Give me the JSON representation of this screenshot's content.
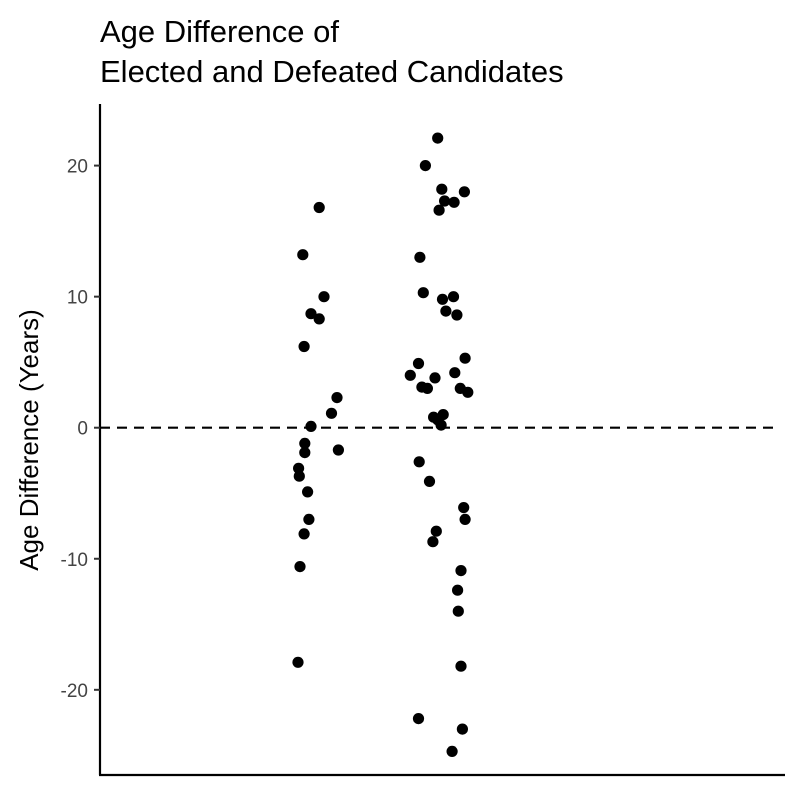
{
  "chart_data": {
    "type": "scatter",
    "title_lines": [
      "Age Difference of",
      "Elected and Defeated Candidates"
    ],
    "xlabel": "",
    "ylabel": "Age Difference (Years)",
    "ylim": [
      -26.5,
      24.7
    ],
    "yticks": [
      -20,
      -10,
      0,
      10,
      20
    ],
    "ytick_labels": [
      "-20",
      "-10",
      "0",
      "10",
      "20"
    ],
    "xlim": [
      0,
      1
    ],
    "reference_line": {
      "y": 0,
      "style": "dashed"
    },
    "grid": false,
    "legend": "none",
    "point_color": "#000000",
    "points": [
      {
        "x": 0.493,
        "y": 22.1
      },
      {
        "x": 0.475,
        "y": 20.0
      },
      {
        "x": 0.499,
        "y": 18.2
      },
      {
        "x": 0.532,
        "y": 18.0
      },
      {
        "x": 0.503,
        "y": 17.3
      },
      {
        "x": 0.517,
        "y": 17.2
      },
      {
        "x": 0.32,
        "y": 16.8
      },
      {
        "x": 0.495,
        "y": 16.6
      },
      {
        "x": 0.296,
        "y": 13.2
      },
      {
        "x": 0.467,
        "y": 13.0
      },
      {
        "x": 0.472,
        "y": 10.3
      },
      {
        "x": 0.5,
        "y": 9.8
      },
      {
        "x": 0.516,
        "y": 10.0
      },
      {
        "x": 0.327,
        "y": 10.0
      },
      {
        "x": 0.308,
        "y": 8.7
      },
      {
        "x": 0.505,
        "y": 8.9
      },
      {
        "x": 0.521,
        "y": 8.6
      },
      {
        "x": 0.32,
        "y": 8.3
      },
      {
        "x": 0.298,
        "y": 6.2
      },
      {
        "x": 0.533,
        "y": 5.3
      },
      {
        "x": 0.465,
        "y": 4.9
      },
      {
        "x": 0.518,
        "y": 4.2
      },
      {
        "x": 0.453,
        "y": 4.0
      },
      {
        "x": 0.489,
        "y": 3.8
      },
      {
        "x": 0.47,
        "y": 3.1
      },
      {
        "x": 0.478,
        "y": 3.0
      },
      {
        "x": 0.526,
        "y": 3.0
      },
      {
        "x": 0.537,
        "y": 2.7
      },
      {
        "x": 0.346,
        "y": 2.3
      },
      {
        "x": 0.338,
        "y": 1.1
      },
      {
        "x": 0.487,
        "y": 0.8
      },
      {
        "x": 0.493,
        "y": 0.6
      },
      {
        "x": 0.501,
        "y": 1.0
      },
      {
        "x": 0.308,
        "y": 0.1
      },
      {
        "x": 0.498,
        "y": 0.2
      },
      {
        "x": 0.299,
        "y": -1.2
      },
      {
        "x": 0.299,
        "y": -1.9
      },
      {
        "x": 0.348,
        "y": -1.7
      },
      {
        "x": 0.466,
        "y": -2.6
      },
      {
        "x": 0.29,
        "y": -3.1
      },
      {
        "x": 0.291,
        "y": -3.7
      },
      {
        "x": 0.481,
        "y": -4.1
      },
      {
        "x": 0.303,
        "y": -4.9
      },
      {
        "x": 0.531,
        "y": -6.1
      },
      {
        "x": 0.533,
        "y": -7.0
      },
      {
        "x": 0.305,
        "y": -7.0
      },
      {
        "x": 0.491,
        "y": -7.9
      },
      {
        "x": 0.298,
        "y": -8.1
      },
      {
        "x": 0.486,
        "y": -8.7
      },
      {
        "x": 0.292,
        "y": -10.6
      },
      {
        "x": 0.527,
        "y": -10.9
      },
      {
        "x": 0.522,
        "y": -12.4
      },
      {
        "x": 0.523,
        "y": -14.0
      },
      {
        "x": 0.289,
        "y": -17.9
      },
      {
        "x": 0.527,
        "y": -18.2
      },
      {
        "x": 0.465,
        "y": -22.2
      },
      {
        "x": 0.529,
        "y": -23.0
      },
      {
        "x": 0.514,
        "y": -24.7
      }
    ]
  }
}
